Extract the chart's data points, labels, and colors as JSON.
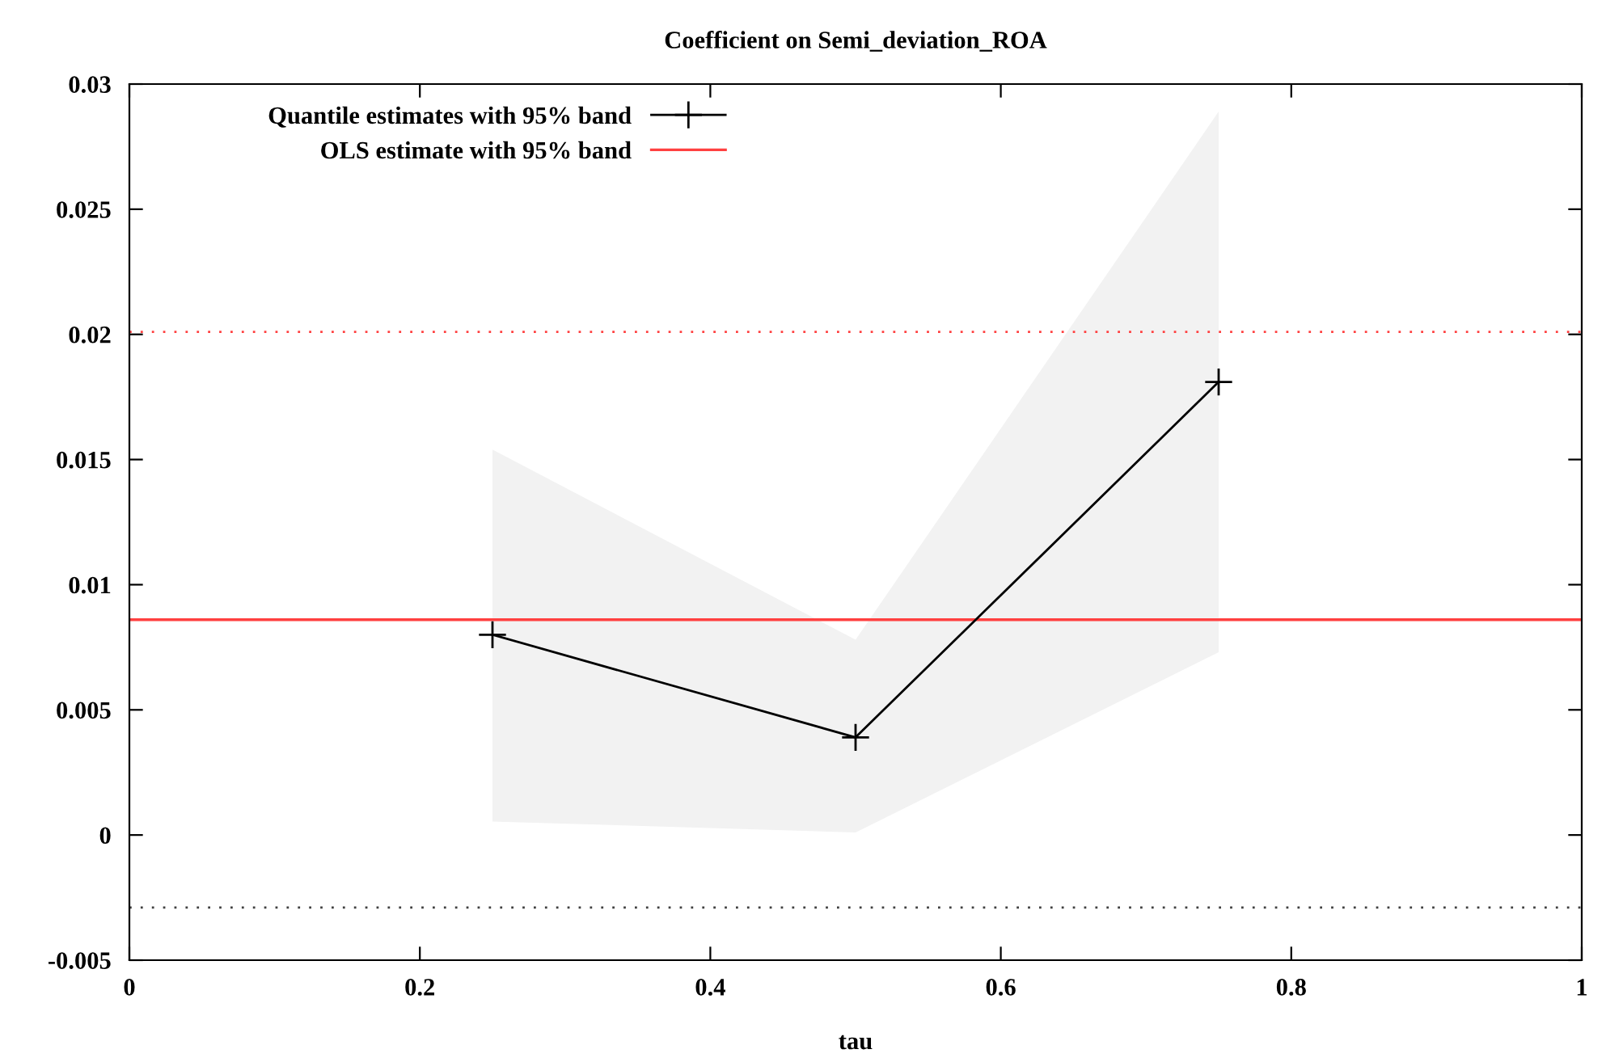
{
  "chart_data": {
    "type": "line",
    "title": "Coefficient on Semi_deviation_ROA",
    "xlabel": "tau",
    "series": [
      {
        "name": "Quantile estimates with 95% band",
        "color": "#000000",
        "x": [
          0.25,
          0.5,
          0.75
        ],
        "values": [
          0.008,
          0.0039,
          0.0181
        ],
        "lower": [
          0.00054,
          0.0001,
          0.0073
        ],
        "upper": [
          0.0154,
          0.0078,
          0.0289
        ]
      }
    ],
    "ref_lines": [
      {
        "axis": "y",
        "value": 0.0086,
        "label": "OLS estimate with 95% band",
        "color": "#ff4040",
        "line_style": "solid"
      },
      {
        "axis": "y",
        "value": 0.0201,
        "color": "#ff4040",
        "line_style": "dotted"
      },
      {
        "axis": "y",
        "value": -0.0029,
        "color": "#404040",
        "line_style": "dotted"
      }
    ],
    "xlim": [
      0,
      1
    ],
    "xticks": [
      0,
      0.2,
      0.4,
      0.6,
      0.8,
      1
    ],
    "ylim": [
      -0.005,
      0.03
    ],
    "yticks": [
      -0.005,
      0,
      0.005,
      0.01,
      0.015,
      0.02,
      0.025,
      0.03
    ],
    "marker": "cross",
    "grid": false,
    "legend": "top left"
  }
}
